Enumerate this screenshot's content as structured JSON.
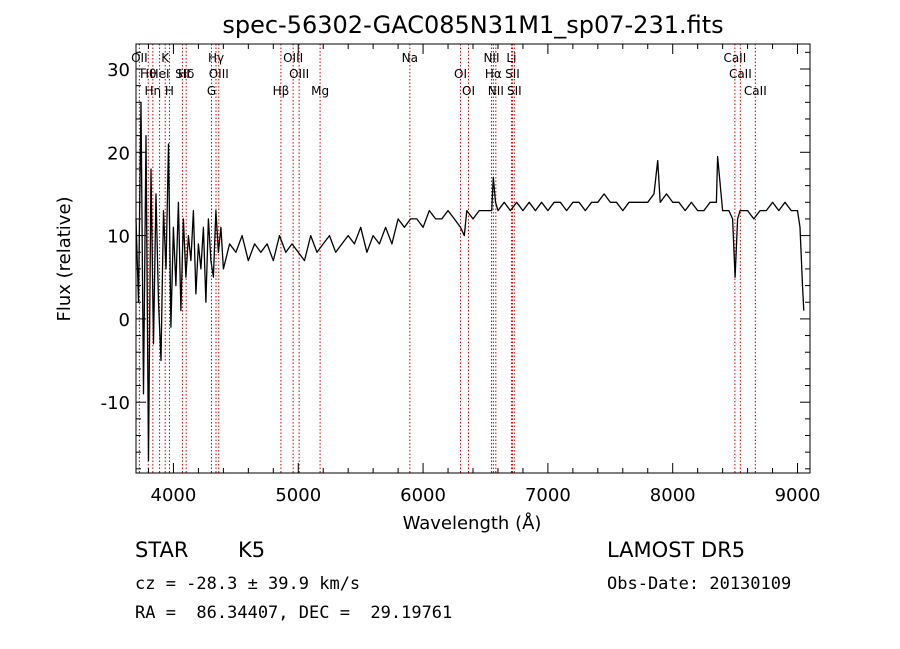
{
  "chart_data": {
    "type": "line",
    "title": "spec-56302-GAC085N31M1_sp07-231.fits",
    "xlabel": "Wavelength (Å)",
    "ylabel": "Flux (relative)",
    "xlim": [
      3700,
      9100
    ],
    "ylim": [
      -18.5,
      33
    ],
    "xticks": [
      4000,
      5000,
      6000,
      7000,
      8000,
      9000
    ],
    "yticks": [
      -10,
      0,
      10,
      20,
      30
    ],
    "line_color": "#000000",
    "marker_color": "#cc0000",
    "series": [
      {
        "x": [
          3700,
          3720,
          3740,
          3760,
          3780,
          3800,
          3820,
          3840,
          3860,
          3880,
          3900,
          3920,
          3940,
          3960,
          3980,
          4000,
          4020,
          4040,
          4060,
          4080,
          4100,
          4120,
          4140,
          4160,
          4180,
          4200,
          4220,
          4240,
          4260,
          4280,
          4300,
          4320,
          4340,
          4360,
          4380,
          4400,
          4450,
          4500,
          4550,
          4600,
          4650,
          4700,
          4750,
          4800,
          4850,
          4900,
          4950,
          5000,
          5050,
          5100,
          5150,
          5200,
          5250,
          5300,
          5350,
          5400,
          5450,
          5500,
          5550,
          5600,
          5650,
          5700,
          5750,
          5800,
          5850,
          5900,
          5950,
          6000,
          6050,
          6100,
          6150,
          6200,
          6250,
          6300,
          6330,
          6350,
          6400,
          6450,
          6500,
          6550,
          6563,
          6580,
          6600,
          6650,
          6700,
          6750,
          6800,
          6850,
          6900,
          6950,
          7000,
          7050,
          7100,
          7150,
          7200,
          7250,
          7300,
          7350,
          7400,
          7450,
          7500,
          7550,
          7600,
          7650,
          7700,
          7750,
          7800,
          7850,
          7880,
          7900,
          7950,
          8000,
          8050,
          8100,
          8150,
          8200,
          8250,
          8300,
          8350,
          8360,
          8400,
          8450,
          8480,
          8500,
          8520,
          8540,
          8560,
          8600,
          8650,
          8700,
          8750,
          8800,
          8850,
          8900,
          8950,
          9000,
          9020,
          9040,
          9050
        ],
        "values": [
          12,
          2,
          26,
          -9,
          22,
          -17,
          18,
          -3,
          15,
          2,
          -5,
          13,
          6,
          21,
          -1,
          11,
          4,
          14,
          1,
          12,
          5,
          10,
          7,
          13,
          3,
          9,
          6,
          11,
          2,
          12,
          7,
          5,
          13,
          8,
          11,
          6,
          9,
          8,
          10,
          7,
          9,
          8,
          9,
          7,
          10,
          8,
          9,
          8,
          7,
          10,
          8,
          9,
          10,
          8,
          9,
          10,
          9,
          11,
          8,
          10,
          9,
          11,
          9,
          12,
          11,
          12,
          12,
          11,
          13,
          12,
          12,
          13,
          12,
          11,
          10,
          13,
          12,
          13,
          13,
          13,
          17,
          14,
          13,
          14,
          13,
          14,
          13,
          14,
          13,
          14,
          13,
          14,
          14,
          13,
          14,
          14,
          13,
          14,
          14,
          15,
          14,
          14,
          13,
          14,
          14,
          14,
          14,
          15,
          19,
          14,
          15,
          14,
          14,
          13,
          14,
          13,
          13,
          14,
          14,
          19.5,
          13,
          13,
          12,
          5,
          12,
          13,
          13,
          13,
          12,
          13,
          13,
          14,
          13,
          14,
          13,
          13,
          11,
          4,
          1
        ]
      }
    ],
    "lines": [
      {
        "label": "OII",
        "x": 3727
      },
      {
        "label": "Hθ",
        "x": 3798
      },
      {
        "label": "Hη",
        "x": 3835
      },
      {
        "label": "K",
        "x": 3934
      },
      {
        "label": "HeI",
        "x": 3889
      },
      {
        "label": "H",
        "x": 3968
      },
      {
        "label": "SII",
        "x": 4072
      },
      {
        "label": "Hδ",
        "x": 4102
      },
      {
        "label": "G",
        "x": 4305
      },
      {
        "label": "Hγ",
        "x": 4341
      },
      {
        "label": "OIII",
        "x": 4363
      },
      {
        "label": "Hβ",
        "x": 4861
      },
      {
        "label": "OIII",
        "x": 4959
      },
      {
        "label": "OIII",
        "x": 5007
      },
      {
        "label": "Mg",
        "x": 5175
      },
      {
        "label": "Na",
        "x": 5894
      },
      {
        "label": "OI",
        "x": 6300
      },
      {
        "label": "OI",
        "x": 6364
      },
      {
        "label": "NII",
        "x": 6548
      },
      {
        "label": "Hα",
        "x": 6563
      },
      {
        "label": "NII",
        "x": 6583
      },
      {
        "label": "Li",
        "x": 6708
      },
      {
        "label": "SII",
        "x": 6716
      },
      {
        "label": "SII",
        "x": 6731
      },
      {
        "label": "CaII",
        "x": 8498
      },
      {
        "label": "CaII",
        "x": 8542
      },
      {
        "label": "CaII",
        "x": 8662
      }
    ],
    "grid": false
  },
  "info": {
    "object_class": "STAR",
    "subclass": "K5",
    "survey": "LAMOST DR5",
    "cz": "cz = -28.3 ± 39.9 km/s",
    "obs_date": "Obs-Date: 20130109",
    "radec": "RA =  86.34407, DEC =  29.19761"
  }
}
